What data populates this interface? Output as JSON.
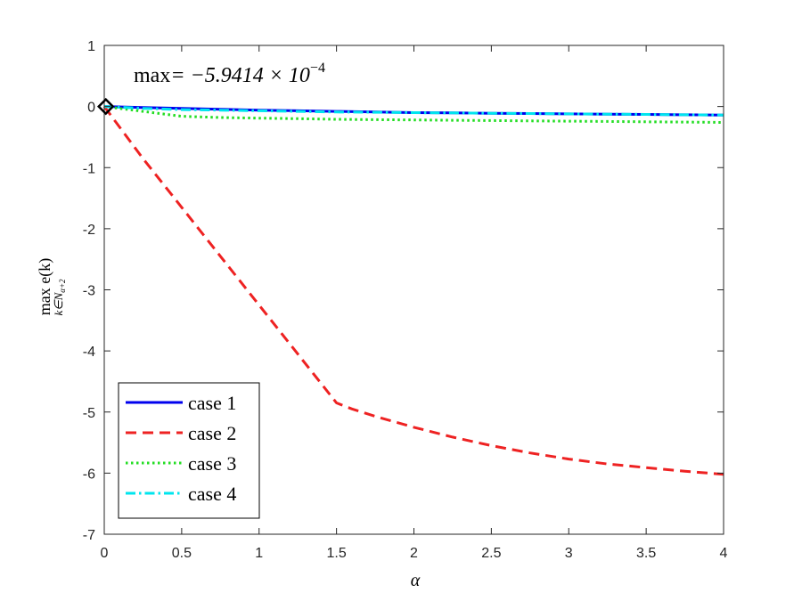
{
  "chart_data": {
    "type": "line",
    "title": "",
    "xlabel": "α",
    "ylabel": {
      "main": "max e(k)",
      "subscript": "k∈N",
      "subsubscript": "α+2"
    },
    "xlim": [
      0,
      4
    ],
    "ylim": [
      -7,
      1
    ],
    "xticks": [
      0,
      0.5,
      1,
      1.5,
      2,
      2.5,
      3,
      3.5,
      4
    ],
    "xtick_labels": [
      "0",
      "0.5",
      "1",
      "1.5",
      "2",
      "2.5",
      "3",
      "3.5",
      "4"
    ],
    "yticks": [
      1,
      0,
      -1,
      -2,
      -3,
      -4,
      -5,
      -6,
      -7
    ],
    "ytick_labels": [
      "1",
      "0",
      "-1",
      "-2",
      "-3",
      "-4",
      "-5",
      "-6",
      "-7"
    ],
    "grid": false,
    "legend_position": "bottom-left",
    "annotation": {
      "prefix": "max",
      "value": "= −5.9414 × 10",
      "exponent": "−4"
    },
    "marker": {
      "shape": "diamond",
      "x": 0.01,
      "y": 0.0
    },
    "series": [
      {
        "name": "case 1",
        "color": "#0000ee",
        "style": "solid",
        "x": [
          0,
          0.25,
          0.5,
          0.75,
          1,
          1.25,
          1.5,
          1.75,
          2,
          2.25,
          2.5,
          2.75,
          3,
          3.25,
          3.5,
          3.75,
          4
        ],
        "y": [
          0,
          -0.015,
          -0.03,
          -0.045,
          -0.06,
          -0.07,
          -0.08,
          -0.09,
          -0.1,
          -0.105,
          -0.11,
          -0.115,
          -0.12,
          -0.125,
          -0.13,
          -0.135,
          -0.14
        ]
      },
      {
        "name": "case 2",
        "color": "#ee2222",
        "style": "dashed",
        "x": [
          0,
          0.25,
          0.5,
          0.75,
          1,
          1.25,
          1.5,
          1.6,
          1.75,
          2,
          2.25,
          2.5,
          2.75,
          3,
          3.25,
          3.5,
          3.75,
          4
        ],
        "y": [
          0,
          -0.85,
          -1.65,
          -2.45,
          -3.25,
          -4.05,
          -4.85,
          -4.95,
          -5.07,
          -5.25,
          -5.41,
          -5.55,
          -5.67,
          -5.77,
          -5.85,
          -5.91,
          -5.97,
          -6.02
        ]
      },
      {
        "name": "case 3",
        "color": "#22dd22",
        "style": "dotted",
        "x": [
          0,
          0.25,
          0.5,
          0.75,
          1,
          1.25,
          1.5,
          1.75,
          2,
          2.25,
          2.5,
          2.75,
          3,
          3.25,
          3.5,
          3.75,
          4
        ],
        "y": [
          0,
          -0.08,
          -0.16,
          -0.18,
          -0.19,
          -0.2,
          -0.21,
          -0.215,
          -0.22,
          -0.225,
          -0.23,
          -0.235,
          -0.24,
          -0.245,
          -0.25,
          -0.255,
          -0.26
        ]
      },
      {
        "name": "case 4",
        "color": "#00e5ee",
        "style": "dashdot",
        "x": [
          0,
          0.25,
          0.5,
          0.75,
          1,
          1.25,
          1.5,
          1.75,
          2,
          2.25,
          2.5,
          2.75,
          3,
          3.25,
          3.5,
          3.75,
          4
        ],
        "y": [
          0,
          -0.03,
          -0.05,
          -0.06,
          -0.07,
          -0.08,
          -0.09,
          -0.095,
          -0.1,
          -0.105,
          -0.11,
          -0.115,
          -0.12,
          -0.125,
          -0.13,
          -0.135,
          -0.14
        ]
      }
    ]
  }
}
